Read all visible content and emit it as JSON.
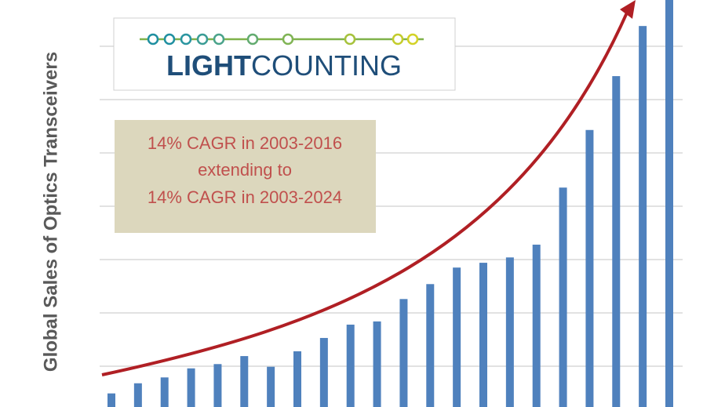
{
  "chart_data": {
    "type": "bar",
    "ylabel": "Global Sales of Optics Transceivers",
    "logo": {
      "bold": "LIGHT",
      "regular": "COUNTING"
    },
    "annotation": [
      "14% CAGR in 2003-2016",
      "extending to",
      "14% CAGR in 2003-2024"
    ],
    "categories": [
      null,
      null,
      null,
      null,
      null,
      null,
      null,
      null,
      null,
      null,
      null,
      null,
      null,
      null,
      null,
      null,
      null,
      null,
      null,
      null,
      null,
      null
    ],
    "values": [
      0.49,
      0.68,
      0.79,
      0.96,
      1.04,
      1.19,
      0.99,
      1.28,
      1.53,
      1.78,
      1.84,
      2.26,
      2.54,
      2.85,
      2.94,
      3.04,
      3.28,
      4.35,
      5.43,
      6.44,
      7.38,
      8.2
    ],
    "color": "#4f81bd",
    "ylim": [
      0,
      8
    ],
    "gridlines": [
      1,
      2,
      3,
      4,
      5,
      6,
      7
    ],
    "grid": true
  }
}
